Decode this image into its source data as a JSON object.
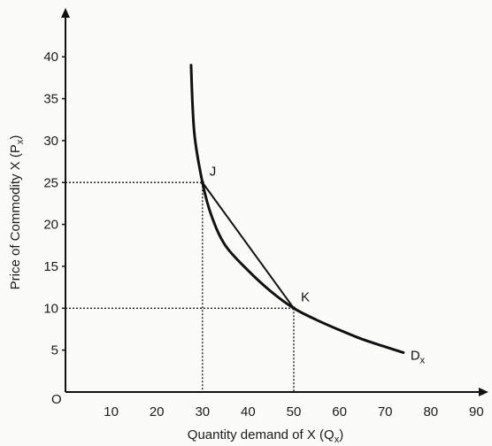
{
  "chart_data": {
    "type": "line",
    "xlabel": {
      "text": "Quantity demand of  X (Q",
      "sub": "x",
      "tail": ")"
    },
    "ylabel": {
      "text": "Price of Commodity X (P",
      "sub": "x",
      "tail": ")"
    },
    "x_ticks": [
      10,
      20,
      30,
      40,
      50,
      60,
      70,
      80,
      90
    ],
    "y_ticks": [
      5,
      10,
      15,
      20,
      25,
      30,
      35,
      40
    ],
    "origin_label": "O",
    "xlim": [
      0,
      92
    ],
    "ylim": [
      0,
      42
    ],
    "series": [
      {
        "label": {
          "text": "D",
          "sub": "x"
        },
        "x": [
          27.5,
          28.2,
          30,
          32,
          35,
          40,
          45,
          50,
          55,
          60,
          65,
          70,
          74
        ],
        "y": [
          39,
          31,
          25,
          21,
          17.5,
          14.5,
          12,
          10,
          8.6,
          7.4,
          6.3,
          5.4,
          4.7
        ]
      }
    ],
    "chord": {
      "x": [
        30,
        50
      ],
      "y": [
        25,
        10
      ]
    },
    "points": [
      {
        "name": "J",
        "x": 30,
        "y": 25
      },
      {
        "name": "K",
        "x": 50,
        "y": 10
      }
    ],
    "grid": false
  }
}
